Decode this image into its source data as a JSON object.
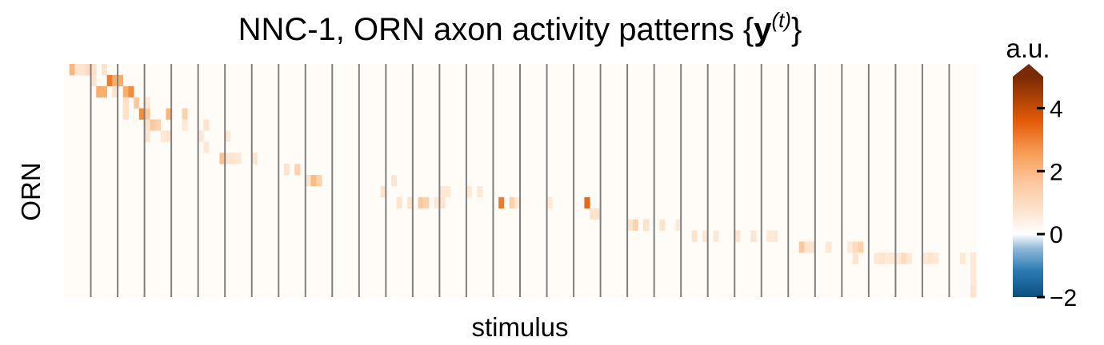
{
  "chart_data": {
    "type": "heatmap",
    "title_main": "NNC-1, ORN axon activity patterns ",
    "title_math": "{y(t)}",
    "title_math_parts": {
      "open": "{",
      "bold": "y",
      "sup": "(t)",
      "close": "}"
    },
    "xlabel": "stimulus",
    "ylabel": "ORN",
    "colorbar": {
      "label": "a.u.",
      "vmin": -2,
      "vmax": 5,
      "ticks": [
        4,
        2,
        0,
        -2
      ],
      "tick_labels": [
        "4",
        "2",
        "0",
        "−2"
      ],
      "extend": "max",
      "colors": [
        "#0b4f80",
        "#ffffff",
        "#f9a55b",
        "#e35a07",
        "#7a2a05"
      ]
    },
    "n_stimuli": 34,
    "n_time_bins": 5,
    "n_orn": 21,
    "background_value": 0.1,
    "separator_color": "#808080",
    "nonzero_cells": [
      [
        0,
        1,
        0,
        1.6
      ],
      [
        1,
        1,
        0,
        1.6
      ],
      [
        2,
        1,
        0,
        0.8
      ],
      [
        4,
        0,
        0,
        0.6
      ],
      [
        1,
        1,
        0,
        0.6
      ],
      [
        2,
        1,
        0,
        0.6
      ],
      [
        2,
        2,
        0,
        0.9
      ],
      [
        3,
        2,
        0,
        0.7
      ],
      [
        1,
        3,
        0,
        0.8
      ],
      [
        4,
        3,
        0,
        0.6
      ],
      [
        1,
        4,
        1,
        0.6
      ],
      [
        3,
        5,
        1,
        2.8
      ],
      [
        3,
        6,
        1,
        1.8
      ],
      [
        4,
        6,
        1,
        1.8
      ],
      [
        0,
        6,
        2,
        1.8
      ],
      [
        1,
        6,
        2,
        1.8
      ],
      [
        3,
        6,
        2,
        0.6
      ],
      [
        2,
        7,
        2,
        0.6
      ],
      [
        2,
        9,
        2,
        1.8
      ],
      [
        3,
        9,
        2,
        2.5
      ],
      [
        4,
        9,
        3,
        1.2
      ],
      [
        1,
        10,
        3,
        0.7
      ],
      [
        2,
        9,
        4,
        0.7
      ],
      [
        3,
        11,
        4,
        2.5
      ],
      [
        4,
        11,
        4,
        1.2
      ],
      [
        2,
        13,
        3,
        0.5
      ],
      [
        3,
        13,
        5,
        1.2
      ],
      [
        4,
        13,
        5,
        1.0
      ],
      [
        1,
        14,
        5,
        0.6
      ],
      [
        1,
        14,
        6,
        0.5
      ],
      [
        4,
        14,
        6,
        0.5
      ],
      [
        0,
        15,
        6,
        0.6
      ],
      [
        4,
        15,
        6,
        0.6
      ],
      [
        1,
        18,
        4,
        1.6
      ],
      [
        3,
        19,
        4,
        1.0
      ],
      [
        4,
        18,
        5,
        0.5
      ],
      [
        0,
        18,
        6,
        0.5
      ],
      [
        2,
        24,
        5,
        0.6
      ],
      [
        0,
        25,
        6,
        0.5
      ],
      [
        2,
        28,
        6,
        0.5
      ],
      [
        3,
        23,
        7,
        0.5
      ],
      [
        4,
        27,
        8,
        0.6
      ],
      [
        1,
        28,
        8,
        1.4
      ],
      [
        2,
        28,
        8,
        0.6
      ],
      [
        3,
        29,
        8,
        0.5
      ],
      [
        4,
        31,
        8,
        0.6
      ],
      [
        3,
        38,
        9,
        0.7
      ],
      [
        4,
        39,
        9,
        1.0
      ],
      [
        1,
        40,
        9,
        0.6
      ],
      [
        1,
        44,
        10,
        0.6
      ],
      [
        2,
        45,
        10,
        0.8
      ],
      [
        0,
        46,
        10,
        1.5
      ],
      [
        1,
        46,
        10,
        1.0
      ],
      [
        3,
        58,
        10,
        0.6
      ],
      [
        1,
        58,
        11,
        0.6
      ],
      [
        4,
        77,
        12,
        0.6
      ],
      [
        4,
        58,
        12,
        0.6
      ],
      [
        2,
        62,
        12,
        0.6
      ],
      [
        3,
        63,
        12,
        1.2
      ],
      [
        4,
        63,
        12,
        0.6
      ],
      [
        2,
        65,
        12,
        0.6
      ],
      [
        1,
        66,
        12,
        1.0
      ],
      [
        4,
        66,
        12,
        0.6
      ],
      [
        2,
        67,
        12,
        0.5
      ],
      [
        4,
        67,
        11,
        0.5
      ],
      [
        1,
        69,
        11,
        0.5
      ],
      [
        0,
        70,
        11,
        0.5
      ],
      [
        4,
        71,
        11,
        0.5
      ],
      [
        3,
        72,
        11,
        0.5
      ],
      [
        4,
        73,
        11,
        0.5
      ],
      [
        3,
        74,
        11,
        0.5
      ],
      [
        2,
        79,
        12,
        2.8
      ],
      [
        3,
        80,
        12,
        1.0
      ],
      [
        4,
        80,
        12,
        0.5
      ],
      [
        0,
        90,
        12,
        0.5
      ],
      [
        3,
        94,
        12,
        3.2
      ],
      [
        3,
        96,
        13,
        0.6
      ],
      [
        0,
        98,
        13,
        0.6
      ],
      [
        3,
        103,
        14,
        1.0
      ],
      [
        4,
        104,
        14,
        1.0
      ],
      [
        0,
        105,
        14,
        0.6
      ],
      [
        2,
        106,
        14,
        0.8
      ],
      [
        4,
        107,
        14,
        0.6
      ],
      [
        0,
        108,
        14,
        0.6
      ],
      [
        1,
        110,
        14,
        0.6
      ],
      [
        0,
        114,
        14,
        0.5
      ],
      [
        4,
        115,
        15,
        0.6
      ],
      [
        1,
        116,
        15,
        0.6
      ],
      [
        2,
        117,
        15,
        0.5
      ],
      [
        3,
        118,
        15,
        0.5
      ],
      [
        1,
        124,
        15,
        0.6
      ],
      [
        3,
        125,
        15,
        0.6
      ],
      [
        4,
        128,
        15,
        0.5
      ],
      [
        1,
        130,
        15,
        0.5
      ],
      [
        2,
        135,
        16,
        1.2
      ],
      [
        3,
        135,
        16,
        1.2
      ],
      [
        4,
        135,
        16,
        0.6
      ],
      [
        1,
        137,
        16,
        0.6
      ],
      [
        2,
        140,
        16,
        0.5
      ],
      [
        0,
        142,
        16,
        0.5
      ],
      [
        4,
        142,
        16,
        0.5
      ],
      [
        3,
        144,
        16,
        0.8
      ],
      [
        4,
        144,
        16,
        1.0
      ],
      [
        1,
        146,
        17,
        0.6
      ],
      [
        3,
        148,
        17,
        0.5
      ],
      [
        4,
        148,
        17,
        0.8
      ],
      [
        3,
        149,
        17,
        0.6
      ],
      [
        2,
        150,
        17,
        0.6
      ],
      [
        1,
        152,
        17,
        0.5
      ],
      [
        1,
        153,
        17,
        0.5
      ],
      [
        3,
        153,
        17,
        0.8
      ],
      [
        4,
        153,
        17,
        0.5
      ],
      [
        0,
        155,
        17,
        0.5
      ],
      [
        3,
        158,
        17,
        0.6
      ],
      [
        0,
        160,
        17,
        0.5
      ],
      [
        0,
        162,
        17,
        0.5
      ],
      [
        4,
        163,
        17,
        0.5
      ],
      [
        4,
        165,
        17,
        0.5
      ],
      [
        4,
        166,
        17,
        0.5
      ],
      [
        2,
        168,
        17,
        0.5
      ],
      [
        0,
        169,
        17,
        0.5
      ],
      [
        0,
        171,
        17,
        0.5
      ],
      [
        2,
        173,
        17,
        0.6
      ],
      [
        4,
        173,
        17,
        0.6
      ],
      [
        3,
        175,
        17,
        0.5
      ],
      [
        1,
        177,
        17,
        0.5
      ],
      [
        2,
        178,
        17,
        0.6
      ],
      [
        3,
        179,
        17,
        0.5
      ],
      [
        4,
        181,
        17,
        0.5
      ],
      [
        3,
        185,
        17,
        0.5
      ],
      [
        4,
        186,
        17,
        0.5
      ],
      [
        3,
        190,
        17,
        0.5
      ],
      [
        1,
        193,
        17,
        0.6
      ],
      [
        4,
        195,
        17,
        0.5
      ],
      [
        2,
        198,
        17,
        0.5
      ],
      [
        0,
        200,
        18,
        0.5
      ],
      [
        3,
        201,
        18,
        0.5
      ],
      [
        2,
        203,
        18,
        0.6
      ],
      [
        0,
        205,
        18,
        0.5
      ],
      [
        2,
        206,
        18,
        0.5
      ],
      [
        0,
        208,
        18,
        0.5
      ],
      [
        1,
        209,
        18,
        0.5
      ],
      [
        3,
        210,
        18,
        0.5
      ],
      [
        3,
        212,
        18,
        0.5
      ],
      [
        0,
        214,
        18,
        0.5
      ],
      [
        0,
        216,
        18,
        0.5
      ],
      [
        2,
        217,
        18,
        0.5
      ],
      [
        4,
        218,
        18,
        0.5
      ],
      [
        4,
        219,
        18,
        0.5
      ],
      [
        2,
        221,
        18,
        0.5
      ],
      [
        0,
        223,
        19,
        0.6
      ],
      [
        2,
        225,
        19,
        0.5
      ],
      [
        3,
        227,
        19,
        0.5
      ],
      [
        4,
        228,
        19,
        0.5
      ],
      [
        1,
        230,
        19,
        0.5
      ],
      [
        3,
        232,
        19,
        0.5
      ],
      [
        1,
        234,
        19,
        0.6
      ],
      [
        2,
        236,
        19,
        0.5
      ],
      [
        4,
        237,
        19,
        0.5
      ],
      [
        3,
        239,
        19,
        0.5
      ],
      [
        2,
        241,
        20,
        0.5
      ],
      [
        0,
        243,
        20,
        0.6
      ],
      [
        2,
        245,
        20,
        0.5
      ],
      [
        4,
        247,
        20,
        0.5
      ],
      [
        0,
        248,
        20,
        0.5
      ],
      [
        0,
        250,
        20,
        0.6
      ]
    ]
  }
}
